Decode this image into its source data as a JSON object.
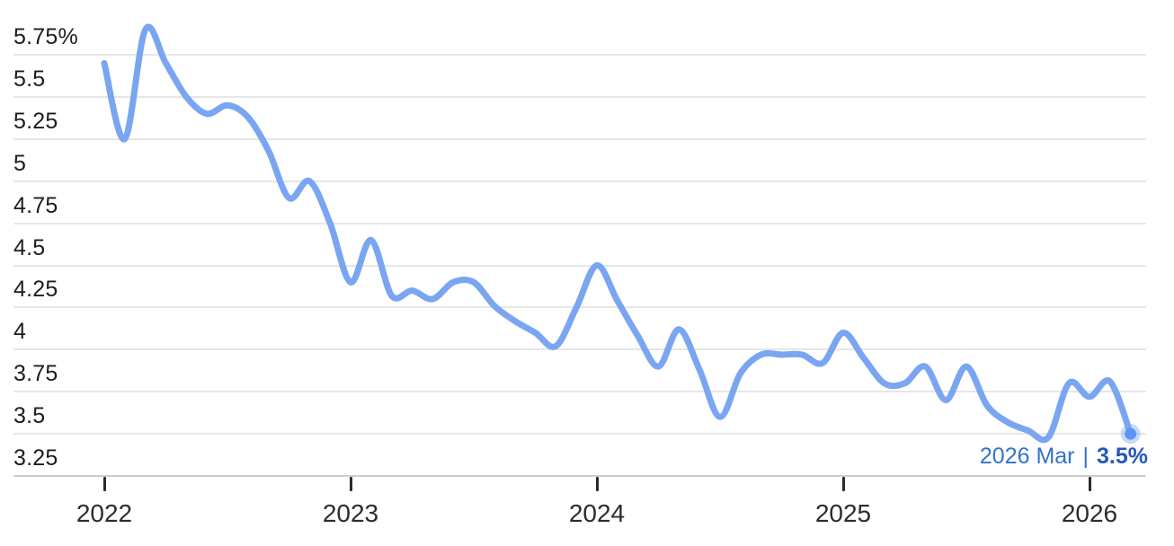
{
  "annotation": {
    "date": "2026 Mar",
    "separator": "|",
    "value": "3.5%"
  },
  "colors": {
    "background": "#ffffff",
    "line": "#7aa5f1",
    "endpoint_dot": "#5f93ef",
    "endpoint_halo": "#7aa5f1",
    "gridline": "#e6e6e6",
    "axis_line": "#cdcdcd",
    "tick": "#2b2b2b",
    "y_label": "#1c1c1e",
    "x_label": "#2c2c2e",
    "annotation_date": "#3273cb",
    "annotation_value": "#2456bd"
  },
  "chart_data": {
    "type": "line",
    "title": "",
    "unit": "%",
    "x_unit": "month",
    "x_start": "2022-01",
    "x_end": "2026-03",
    "grid": "horizontal",
    "legend": "none",
    "ylim": [
      3.25,
      5.75
    ],
    "y_tick_step": 0.25,
    "y_ticks": {
      "labels": [
        "5.75%",
        "5.5",
        "5.25",
        "5",
        "4.75",
        "4.5",
        "4.25",
        "4",
        "3.75",
        "3.5",
        "3.25"
      ],
      "values": [
        5.75,
        5.5,
        5.25,
        5.0,
        4.75,
        4.5,
        4.25,
        4.0,
        3.75,
        3.5,
        3.25
      ]
    },
    "x_ticks": {
      "labels": [
        "2022",
        "2023",
        "2024",
        "2025",
        "2026"
      ],
      "positions_months": [
        0,
        12,
        24,
        36,
        48
      ]
    },
    "months": [
      "2022-01",
      "2022-02",
      "2022-03",
      "2022-04",
      "2022-05",
      "2022-06",
      "2022-07",
      "2022-08",
      "2022-09",
      "2022-10",
      "2022-11",
      "2022-12",
      "2023-01",
      "2023-02",
      "2023-03",
      "2023-04",
      "2023-05",
      "2023-06",
      "2023-07",
      "2023-08",
      "2023-09",
      "2023-10",
      "2023-11",
      "2023-12",
      "2024-01",
      "2024-02",
      "2024-03",
      "2024-04",
      "2024-05",
      "2024-06",
      "2024-07",
      "2024-08",
      "2024-09",
      "2024-10",
      "2024-11",
      "2024-12",
      "2025-01",
      "2025-02",
      "2025-03",
      "2025-04",
      "2025-05",
      "2025-06",
      "2025-07",
      "2025-08",
      "2025-09",
      "2025-10",
      "2025-11",
      "2025-12",
      "2026-01",
      "2026-02",
      "2026-03"
    ],
    "values": [
      5.7,
      5.25,
      5.9,
      5.7,
      5.5,
      5.4,
      5.45,
      5.38,
      5.18,
      4.9,
      5.0,
      4.75,
      4.4,
      4.65,
      4.32,
      4.35,
      4.3,
      4.4,
      4.4,
      4.26,
      4.17,
      4.1,
      4.02,
      4.25,
      4.5,
      4.29,
      4.08,
      3.9,
      4.12,
      3.88,
      3.6,
      3.86,
      3.97,
      3.97,
      3.97,
      3.92,
      4.1,
      3.95,
      3.8,
      3.8,
      3.9,
      3.7,
      3.9,
      3.67,
      3.57,
      3.52,
      3.48,
      3.8,
      3.72,
      3.81,
      3.5
    ],
    "endpoint": {
      "month": "2026-03",
      "value": 3.5,
      "marker": "dot-with-halo"
    }
  }
}
